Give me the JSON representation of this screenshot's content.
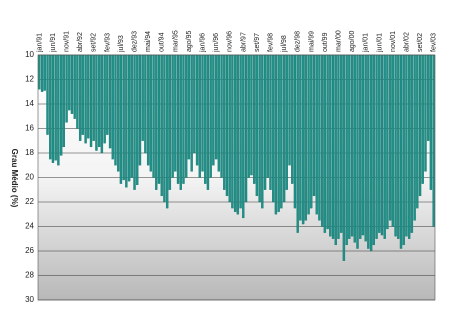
{
  "chart_data": {
    "type": "bar",
    "y_label": "Grau Médio (%)",
    "color": "#1f9088",
    "ylim": [
      10,
      30
    ],
    "yticks": [
      10,
      12,
      14,
      16,
      18,
      20,
      22,
      24,
      26,
      28,
      30
    ],
    "y_inverted": true,
    "grid": true,
    "categories": [
      "jan/91",
      null,
      null,
      null,
      null,
      "jun/91",
      null,
      null,
      null,
      null,
      "nov/91",
      null,
      null,
      null,
      null,
      "abr/92",
      null,
      null,
      null,
      null,
      "set/92",
      null,
      null,
      null,
      null,
      "fev/93",
      null,
      null,
      null,
      null,
      "jul/93",
      null,
      null,
      null,
      null,
      "dez/93",
      null,
      null,
      null,
      null,
      "mai/94",
      null,
      null,
      null,
      null,
      "out/94",
      null,
      null,
      null,
      null,
      "mar/95",
      null,
      null,
      null,
      null,
      "ago/95",
      null,
      null,
      null,
      null,
      "jan/96",
      null,
      null,
      null,
      null,
      "jun/96",
      null,
      null,
      null,
      null,
      "nov/96",
      null,
      null,
      null,
      null,
      "abr/97",
      null,
      null,
      null,
      null,
      "set/97",
      null,
      null,
      null,
      null,
      "fev/98",
      null,
      null,
      null,
      null,
      "jul/98",
      null,
      null,
      null,
      null,
      "dez/98",
      null,
      null,
      null,
      null,
      "mai/99",
      null,
      null,
      null,
      null,
      "out/99",
      null,
      null,
      null,
      null,
      "mar/00",
      null,
      null,
      null,
      null,
      "ago/00",
      null,
      null,
      null,
      null,
      "jan/01",
      null,
      null,
      null,
      null,
      "jun/01",
      null,
      null,
      null,
      null,
      "nov/01",
      null,
      null,
      null,
      null,
      "abr/02",
      null,
      null,
      null,
      null,
      "set/02",
      null,
      null,
      null,
      null,
      "fev/03"
    ],
    "values": [
      12.8,
      13,
      12.9,
      16.5,
      18.5,
      18.8,
      18.6,
      19,
      18.2,
      17.5,
      15.5,
      14.5,
      14.8,
      15.2,
      16,
      17,
      16.5,
      17.2,
      16.8,
      17.5,
      17,
      17.8,
      17.5,
      18,
      17.2,
      16.5,
      17.6,
      18.5,
      19,
      19.5,
      20.5,
      20.2,
      20.8,
      20.3,
      20,
      21,
      20.6,
      19,
      17,
      18,
      19,
      19.5,
      20,
      21,
      20.5,
      21.5,
      22,
      22.5,
      21,
      20,
      19.5,
      20.5,
      21,
      20.5,
      20,
      18.5,
      19.5,
      18,
      19,
      20,
      19.5,
      20.5,
      21,
      20,
      19,
      18.5,
      19.5,
      20,
      21,
      21.5,
      22,
      22.5,
      22.8,
      23,
      22.5,
      23.3,
      22,
      20,
      19.8,
      20.5,
      21.5,
      22,
      22.5,
      21,
      20,
      21,
      22,
      23,
      22.8,
      22.5,
      22,
      21,
      19,
      20.5,
      22.5,
      24.5,
      23.5,
      23.8,
      23.5,
      23,
      22.5,
      21.5,
      23,
      23.5,
      24,
      24.5,
      24.2,
      24.8,
      25,
      25.5,
      25,
      24.5,
      26.8,
      25.5,
      25,
      24.8,
      25.3,
      25.8,
      25,
      24.7,
      25.2,
      25.8,
      26,
      25.5,
      25,
      24.5,
      24.7,
      25,
      24.2,
      23.5,
      24,
      24.8,
      25,
      25.8,
      25.5,
      24.8,
      25,
      24.5,
      23.5,
      22.5,
      21.5,
      20.5,
      19.5,
      17,
      21,
      24
    ]
  }
}
